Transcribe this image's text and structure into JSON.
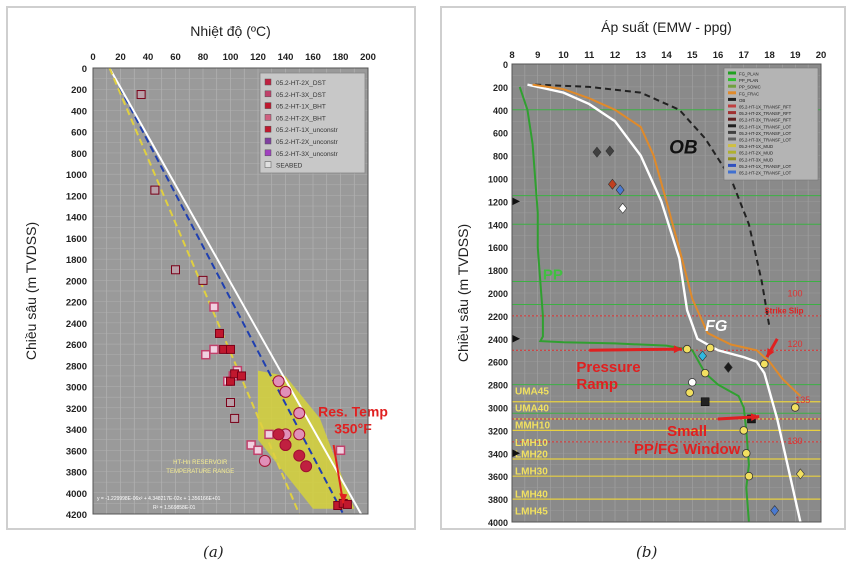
{
  "captions": [
    "(a)",
    "(b)"
  ],
  "chart_data": [
    {
      "type": "scatter",
      "title": "Nhiệt độ (ºC)",
      "ylabel": "Chiều sâu (m TVDSS)",
      "xlim": [
        0,
        200
      ],
      "ylim": [
        0,
        4200
      ],
      "x_ticks": [
        "0",
        "20",
        "40",
        "60",
        "80",
        "100",
        "120",
        "140",
        "160",
        "180",
        "200"
      ],
      "y_ticks": [
        "0",
        "200",
        "400",
        "600",
        "800",
        "1000",
        "1200",
        "1400",
        "1600",
        "1800",
        "2000",
        "2200",
        "2400",
        "2600",
        "2800",
        "3000",
        "3200",
        "3400",
        "3600",
        "3800",
        "4000",
        "4200"
      ],
      "grid": true,
      "legend_position": "top-right",
      "legend": [
        "05.2-HT-2X_DST",
        "05.2-HT-3X_DST",
        "05.2-HT-1X_BHT",
        "05.2-HT-2X_BHT",
        "05.2-HT-1X_unconstr",
        "05.2-HT-2X_unconstr",
        "05.2-HT-3X_unconstr",
        "SEABED"
      ],
      "annotations": {
        "res_temp": [
          "Res. Temp",
          "350°F"
        ],
        "range_label": [
          "HT-Hn RESERVOIR",
          "TEMPERATURE RANGE"
        ],
        "equation": [
          "y = -1.229998E-06x² + 4.348217E-02x + 1.356166E+01",
          "R² = 1.569858E-01"
        ]
      },
      "series": [
        {
          "marker": "square-gray",
          "color": "#b8a0a8",
          "points": [
            [
              35,
              250
            ],
            [
              45,
              1150
            ],
            [
              60,
              1900
            ],
            [
              80,
              2000
            ],
            [
              100,
              3150
            ],
            [
              103,
              3300
            ]
          ]
        },
        {
          "marker": "square-outline",
          "color": "#c0406a",
          "points": [
            [
              82,
              2700
            ],
            [
              88,
              2650
            ],
            [
              88,
              2250
            ],
            [
              98,
              2950
            ],
            [
              102,
              2900
            ],
            [
              105,
              2850
            ],
            [
              115,
              3550
            ],
            [
              120,
              3600
            ],
            [
              128,
              3450
            ],
            [
              180,
              3600
            ]
          ]
        },
        {
          "marker": "square-red",
          "color": "#c0182e",
          "points": [
            [
              92,
              2500
            ],
            [
              95,
              2650
            ],
            [
              100,
              2650
            ],
            [
              100,
              2950
            ],
            [
              103,
              2880
            ],
            [
              108,
              2900
            ],
            [
              178,
              4120
            ],
            [
              182,
              4100
            ],
            [
              185,
              4110
            ]
          ]
        },
        {
          "marker": "circle-pink",
          "color": "#e090b8",
          "points": [
            [
              135,
              2950
            ],
            [
              140,
              3050
            ],
            [
              150,
              3250
            ],
            [
              125,
              3700
            ],
            [
              140,
              3550
            ],
            [
              150,
              3450
            ],
            [
              140,
              3450
            ]
          ]
        },
        {
          "marker": "circle-red",
          "color": "#c02040",
          "points": [
            [
              140,
              3550
            ],
            [
              150,
              3650
            ],
            [
              155,
              3750
            ],
            [
              135,
              3450
            ]
          ]
        }
      ],
      "trend_lines": [
        {
          "name_color": "#2040b0",
          "style": "dashed",
          "points": [
            [
              12,
              0
            ],
            [
              182,
              4200
            ]
          ]
        },
        {
          "name_color": "#ffffff",
          "style": "solid",
          "points": [
            [
              12,
              0
            ],
            [
              195,
              4200
            ]
          ]
        },
        {
          "name_color": "#e0d040",
          "style": "dashed",
          "points": [
            [
              12,
              0
            ],
            [
              150,
              4200
            ]
          ]
        }
      ],
      "temperature_range_band": {
        "color": "#d6d23a",
        "polygon_data": [
          [
            120,
            2850
          ],
          [
            140,
            2900
          ],
          [
            165,
            3300
          ],
          [
            190,
            4150
          ],
          [
            160,
            4150
          ],
          [
            120,
            3500
          ]
        ]
      },
      "res_temp_arrow": {
        "from": [
          175,
          3550
        ],
        "to": [
          182,
          4100
        ]
      }
    },
    {
      "type": "line",
      "title": "Áp suất (EMW - ppg)",
      "ylabel": "Chiều sâu (m TVDSS)",
      "xlim": [
        8,
        20
      ],
      "ylim": [
        0,
        4000
      ],
      "x_ticks": [
        "8",
        "9",
        "10",
        "11",
        "12",
        "13",
        "14",
        "15",
        "16",
        "17",
        "18",
        "19",
        "20"
      ],
      "y_ticks": [
        "0",
        "200",
        "400",
        "600",
        "800",
        "1000",
        "1200",
        "1400",
        "1600",
        "1800",
        "2000",
        "2200",
        "2400",
        "2600",
        "2800",
        "3000",
        "3200",
        "3400",
        "3600",
        "3800",
        "4000"
      ],
      "grid": true,
      "legend_position": "top-right",
      "legend": [
        "FG_PLAN",
        "PP_PLAN",
        "PP_SONIC",
        "FG_FRAC",
        "OB",
        "05.2-HT-1X_TRANSF_RFT",
        "05.2-HT-2X_TRANSF_RFT",
        "05.2-HT-3X_TRANSF_RFT",
        "05.2-HT-1X_TRANSF_LOT",
        "05.2-HT-2X_TRANSF_LOT",
        "05.2-HT-3X_TRANSF_LOT",
        "05.2-HT-1X_MUD",
        "05.2-HT-2X_MUD",
        "05.2-HT-3X_MUD",
        "05.2-HT-1X_TRANSF_LOT",
        "05.2-HT-2X_TRANSF_LOT"
      ],
      "labels": {
        "ob": "OB",
        "pp": "PP",
        "fg": "FG",
        "strike_slip": "Strike Slip",
        "f100": "100",
        "f120": "120",
        "f130": "130",
        "f135": "135"
      },
      "annotations": {
        "pressure_ramp": [
          "Pressure",
          "Ramp"
        ],
        "small_window": [
          "Small",
          "PP/FG Window"
        ]
      },
      "formations": [
        "UMA45",
        "UMA40",
        "MMH10",
        "LMH10",
        "LMH20",
        "LMH30",
        "LMH40",
        "LMH45"
      ],
      "formation_depths": [
        2850,
        3000,
        3150,
        3300,
        3400,
        3550,
        3750,
        3900
      ],
      "horizontal_lines_green": [
        400,
        1150,
        1400,
        1900,
        2100,
        2800,
        3050
      ],
      "horizontal_lines_yellow": [
        2950,
        3100,
        3200,
        3450,
        3600,
        3800
      ],
      "horizontal_lines_red": [
        2200,
        2500,
        3100,
        3300
      ],
      "series": [
        {
          "name": "OB",
          "color": "#222222",
          "style": "dashed",
          "x": [
            8.9,
            11,
            13,
            14.5,
            15.5,
            16.5,
            17.2,
            17.7,
            18
          ],
          "y": [
            180,
            200,
            250,
            400,
            650,
            1000,
            1400,
            1900,
            2300
          ]
        },
        {
          "name": "FG",
          "color": "#ffffff",
          "style": "solid",
          "x": [
            8.6,
            10,
            11,
            12,
            13,
            13.8,
            14.5,
            14.8,
            15.2,
            16,
            17,
            17.5,
            17.8,
            18.3,
            18.8,
            19.2
          ],
          "y": [
            180,
            250,
            350,
            500,
            800,
            1200,
            1700,
            2150,
            2400,
            2500,
            2560,
            2600,
            2700,
            3100,
            3600,
            4000
          ]
        },
        {
          "name": "FG_orange",
          "color": "#e08a2a",
          "style": "solid",
          "x": [
            8.8,
            10,
            11,
            12,
            13,
            13.5,
            14.0,
            14.6,
            15,
            15.6,
            16.5,
            17.5,
            18.0,
            18.5,
            19.2
          ],
          "y": [
            180,
            220,
            300,
            400,
            550,
            800,
            1200,
            1700,
            2050,
            2350,
            2450,
            2500,
            2600,
            2750,
            2900
          ]
        },
        {
          "name": "PP",
          "color": "#30a030",
          "style": "solid",
          "x": [
            8.3,
            8.6,
            8.8,
            8.9,
            9.0,
            9.0,
            9.1,
            9.2,
            9.2,
            9.1,
            10,
            12,
            14,
            15.0,
            15.5,
            16.0,
            16.4,
            16.8,
            17.0,
            17.1,
            17.2,
            17.1,
            17.2
          ],
          "y": [
            200,
            400,
            700,
            1000,
            1300,
            1600,
            1900,
            2200,
            2380,
            2420,
            2430,
            2440,
            2460,
            2500,
            2700,
            2800,
            2850,
            2900,
            3000,
            3200,
            3500,
            3700,
            4000
          ]
        }
      ],
      "data_points": [
        {
          "marker": "diamond",
          "color": "#404040",
          "x": 11.3,
          "y": 770
        },
        {
          "marker": "diamond",
          "color": "#404040",
          "x": 11.8,
          "y": 760
        },
        {
          "marker": "diamond",
          "color": "#c04020",
          "x": 11.9,
          "y": 1050
        },
        {
          "marker": "diamond",
          "color": "#4a7ad0",
          "x": 12.2,
          "y": 1100
        },
        {
          "marker": "diamond",
          "color": "#ffffff",
          "x": 12.3,
          "y": 1260
        },
        {
          "marker": "circle",
          "color": "#f2e060",
          "x": 14.8,
          "y": 2490
        },
        {
          "marker": "diamond",
          "color": "#30b8e0",
          "x": 15.4,
          "y": 2550
        },
        {
          "marker": "circle",
          "color": "#f2e060",
          "x": 15.7,
          "y": 2480
        },
        {
          "marker": "circle",
          "color": "#ffffff",
          "x": 15.0,
          "y": 2780
        },
        {
          "marker": "circle",
          "color": "#f2e060",
          "x": 14.9,
          "y": 2870
        },
        {
          "marker": "square",
          "color": "#222222",
          "x": 15.5,
          "y": 2950
        },
        {
          "marker": "circle",
          "color": "#f2e060",
          "x": 15.5,
          "y": 2700
        },
        {
          "marker": "diamond",
          "color": "#1a1a1a",
          "x": 16.4,
          "y": 2650
        },
        {
          "marker": "circle",
          "color": "#f2e060",
          "x": 17.0,
          "y": 3200
        },
        {
          "marker": "circle",
          "color": "#f2e060",
          "x": 17.1,
          "y": 3400
        },
        {
          "marker": "circle",
          "color": "#f2e060",
          "x": 17.2,
          "y": 3600
        },
        {
          "marker": "circle",
          "color": "#f2e060",
          "x": 17.8,
          "y": 2620
        },
        {
          "marker": "diamond",
          "color": "#f2e060",
          "x": 19.2,
          "y": 3580
        },
        {
          "marker": "circle",
          "color": "#f2e060",
          "x": 19.0,
          "y": 3000
        },
        {
          "marker": "square",
          "color": "#1a1a1a",
          "x": 17.3,
          "y": 3100
        },
        {
          "marker": "diamond",
          "color": "#4a7ad0",
          "x": 18.2,
          "y": 3900
        }
      ],
      "arrows": [
        {
          "color": "#e02020",
          "from": [
            11.0,
            2500
          ],
          "to": [
            14.6,
            2490
          ]
        },
        {
          "color": "#e02020",
          "from": [
            16.0,
            3100
          ],
          "to": [
            17.6,
            3080
          ]
        },
        {
          "color": "#e02020",
          "from": [
            18.3,
            2400
          ],
          "to": [
            17.9,
            2560
          ]
        }
      ]
    }
  ]
}
